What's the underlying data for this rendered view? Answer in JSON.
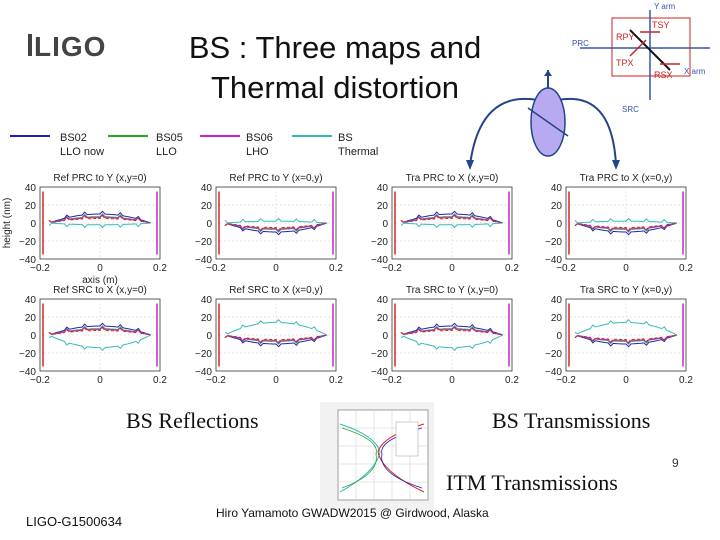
{
  "slide": {
    "logo_text": "LIGO",
    "title_line1": "BS : Three maps and",
    "title_line2": "Thermal distortion",
    "page_number": "9",
    "footer_left": "LIGO-G1500634",
    "footer_center": "Hiro Yamamoto  GWADW2015 @ Girdwood, Alaska"
  },
  "diagram": {
    "labels": [
      "Y arm",
      "TSY",
      "RPY",
      "PRC",
      "TPX",
      "X arm",
      "RSX",
      "SRC"
    ]
  },
  "legend": {
    "items": [
      {
        "line1": "BS02",
        "line2": "LLO now",
        "color": "#1f1fbf"
      },
      {
        "line1": "BS05",
        "line2": "LLO",
        "color": "#22aa22"
      },
      {
        "line1": "BS06",
        "line2": "LHO",
        "color": "#cc22cc"
      },
      {
        "line1": "BS",
        "line2": "Thermal",
        "color": "#33bbbb"
      }
    ]
  },
  "chart_data": [
    {
      "type": "line",
      "title": "Ref PRC to Y (x,y=0)",
      "xlabel": "axis (m)",
      "ylabel": "height (nm)",
      "xlim": [
        -0.2,
        0.2
      ],
      "ylim": [
        -40,
        40
      ],
      "xticks": [
        "−0.2",
        "0",
        "0.2"
      ],
      "yticks": [
        "40",
        "20",
        "0",
        "−20",
        "−40"
      ]
    },
    {
      "type": "line",
      "title": "Ref PRC to Y (x=0,y)",
      "xlim": [
        -0.2,
        0.2
      ],
      "ylim": [
        -40,
        40
      ],
      "xticks": [
        "−0.2",
        "0",
        "0.2"
      ],
      "yticks": [
        "40",
        "20",
        "0",
        "−20",
        "−40"
      ]
    },
    {
      "type": "line",
      "title": "Tra PRC to X (x,y=0)",
      "xlim": [
        -0.2,
        0.2
      ],
      "ylim": [
        -40,
        40
      ],
      "xticks": [
        "−0.2",
        "0",
        "0.2"
      ],
      "yticks": [
        "40",
        "20",
        "0",
        "−20",
        "−40"
      ]
    },
    {
      "type": "line",
      "title": "Tra PRC to X (x=0,y)",
      "xlim": [
        -0.2,
        0.2
      ],
      "ylim": [
        -40,
        40
      ],
      "xticks": [
        "−0.2",
        "0",
        "0.2"
      ],
      "yticks": [
        "40",
        "20",
        "0",
        "−20",
        "−40"
      ]
    },
    {
      "type": "line",
      "title": "Ref SRC to X (x,y=0)",
      "xlim": [
        -0.2,
        0.2
      ],
      "ylim": [
        -40,
        40
      ],
      "xticks": [
        "−0.2",
        "0",
        "0.2"
      ],
      "yticks": [
        "40",
        "20",
        "0",
        "−20",
        "−40"
      ]
    },
    {
      "type": "line",
      "title": "Ref SRC to X (x=0,y)",
      "xlim": [
        -0.2,
        0.2
      ],
      "ylim": [
        -40,
        40
      ],
      "xticks": [
        "−0.2",
        "0",
        "0.2"
      ],
      "yticks": [
        "40",
        "20",
        "0",
        "−20",
        "−40"
      ]
    },
    {
      "type": "line",
      "title": "Tra SRC to Y (x,y=0)",
      "xlim": [
        -0.2,
        0.2
      ],
      "ylim": [
        -40,
        40
      ],
      "xticks": [
        "−0.2",
        "0",
        "0.2"
      ],
      "yticks": [
        "40",
        "20",
        "0",
        "−20",
        "−40"
      ]
    },
    {
      "type": "line",
      "title": "Tra SRC to Y (x=0,y)",
      "xlim": [
        -0.2,
        0.2
      ],
      "ylim": [
        -40,
        40
      ],
      "xticks": [
        "−0.2",
        "0",
        "0.2"
      ],
      "yticks": [
        "40",
        "20",
        "0",
        "−20",
        "−40"
      ]
    }
  ],
  "captions": {
    "reflections": "BS Reflections",
    "transmissions": "BS Transmissions",
    "itm_transmissions": "ITM Transmissions"
  },
  "colors": {
    "bs02": "#1f1fbf",
    "bs05": "#22aa22",
    "bs06": "#cc22cc",
    "thermal": "#33bbbb",
    "red": "#dd2222",
    "diagram_red": "#cc2222",
    "diagram_blue": "#3355aa",
    "beamsplitter": "#b8aaf0"
  }
}
